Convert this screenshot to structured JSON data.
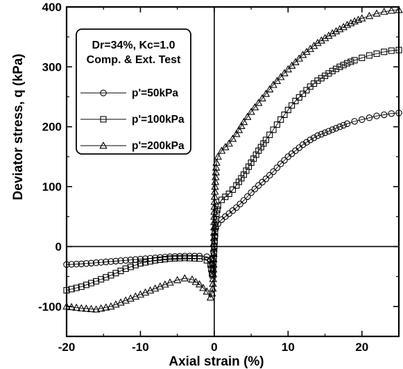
{
  "chart_data": {
    "type": "scatter",
    "xlabel": "Axial strain (%)",
    "ylabel": "Deviator stress, q (kPa)",
    "xlim": [
      -20,
      25
    ],
    "ylim": [
      -150,
      400
    ],
    "x_ticks": [
      -20,
      -10,
      0,
      10,
      20
    ],
    "y_ticks": [
      -100,
      0,
      100,
      200,
      300,
      400
    ],
    "grid": false,
    "zero_lines": true,
    "legend_position": "top-left",
    "annotation_lines": [
      "Dr=34%, Kc=1.0",
      "Comp. & Ext. Test"
    ],
    "series": [
      {
        "name": "p'=50kPa",
        "marker": "circle",
        "points": [
          [
            -20,
            -30
          ],
          [
            -18,
            -29
          ],
          [
            -16,
            -27
          ],
          [
            -14,
            -25
          ],
          [
            -12,
            -23
          ],
          [
            -10,
            -21
          ],
          [
            -8,
            -19
          ],
          [
            -6,
            -17
          ],
          [
            -4,
            -16
          ],
          [
            -2,
            -16
          ],
          [
            -1,
            -17
          ],
          [
            -0.5,
            -22
          ],
          [
            -0.3,
            -30
          ],
          [
            -0.2,
            -36
          ],
          [
            -0.1,
            -20
          ],
          [
            0,
            0
          ],
          [
            0.1,
            18
          ],
          [
            0.2,
            30
          ],
          [
            0.5,
            38
          ],
          [
            1,
            45
          ],
          [
            2,
            55
          ],
          [
            3,
            65
          ],
          [
            4,
            77
          ],
          [
            5,
            90
          ],
          [
            6,
            102
          ],
          [
            7,
            113
          ],
          [
            8,
            125
          ],
          [
            9,
            138
          ],
          [
            10,
            150
          ],
          [
            11,
            160
          ],
          [
            12,
            170
          ],
          [
            13,
            178
          ],
          [
            14,
            185
          ],
          [
            15,
            190
          ],
          [
            16,
            195
          ],
          [
            17,
            200
          ],
          [
            18,
            205
          ],
          [
            19,
            209
          ],
          [
            20,
            212
          ],
          [
            21,
            215
          ],
          [
            22,
            218
          ],
          [
            23,
            220
          ],
          [
            24,
            222
          ],
          [
            25,
            223
          ]
        ]
      },
      {
        "name": "p'=100kPa",
        "marker": "square",
        "points": [
          [
            -20,
            -73
          ],
          [
            -18,
            -67
          ],
          [
            -16,
            -58
          ],
          [
            -14,
            -48
          ],
          [
            -12,
            -37
          ],
          [
            -10,
            -28
          ],
          [
            -8,
            -23
          ],
          [
            -6,
            -20
          ],
          [
            -4,
            -19
          ],
          [
            -2,
            -20
          ],
          [
            -1,
            -23
          ],
          [
            -0.5,
            -30
          ],
          [
            -0.3,
            -45
          ],
          [
            -0.2,
            -48
          ],
          [
            -0.1,
            -20
          ],
          [
            0,
            0
          ],
          [
            0.1,
            25
          ],
          [
            0.3,
            55
          ],
          [
            0.5,
            68
          ],
          [
            1,
            78
          ],
          [
            2,
            88
          ],
          [
            3,
            102
          ],
          [
            4,
            120
          ],
          [
            5,
            140
          ],
          [
            6,
            160
          ],
          [
            7,
            178
          ],
          [
            8,
            195
          ],
          [
            9,
            212
          ],
          [
            10,
            228
          ],
          [
            11,
            243
          ],
          [
            12,
            255
          ],
          [
            13,
            267
          ],
          [
            14,
            277
          ],
          [
            15,
            285
          ],
          [
            16,
            293
          ],
          [
            17,
            300
          ],
          [
            18,
            306
          ],
          [
            19,
            311
          ],
          [
            20,
            315
          ],
          [
            21,
            319
          ],
          [
            22,
            322
          ],
          [
            23,
            325
          ],
          [
            24,
            327
          ],
          [
            25,
            328
          ]
        ]
      },
      {
        "name": "p'=200kPa",
        "marker": "triangle",
        "points": [
          [
            -20,
            -100
          ],
          [
            -18,
            -103
          ],
          [
            -16,
            -105
          ],
          [
            -14,
            -100
          ],
          [
            -12,
            -90
          ],
          [
            -10,
            -80
          ],
          [
            -8,
            -70
          ],
          [
            -6,
            -60
          ],
          [
            -5,
            -56
          ],
          [
            -4,
            -53
          ],
          [
            -3,
            -55
          ],
          [
            -2,
            -63
          ],
          [
            -1,
            -75
          ],
          [
            -0.5,
            -85
          ],
          [
            -0.3,
            -78
          ],
          [
            -0.2,
            -70
          ],
          [
            -0.1,
            -30
          ],
          [
            0,
            50
          ],
          [
            0.1,
            100
          ],
          [
            0.3,
            140
          ],
          [
            0.5,
            150
          ],
          [
            1,
            160
          ],
          [
            2,
            172
          ],
          [
            3,
            188
          ],
          [
            4,
            208
          ],
          [
            5,
            225
          ],
          [
            6,
            240
          ],
          [
            7,
            255
          ],
          [
            8,
            270
          ],
          [
            9,
            283
          ],
          [
            10,
            296
          ],
          [
            11,
            308
          ],
          [
            12,
            320
          ],
          [
            13,
            330
          ],
          [
            14,
            340
          ],
          [
            15,
            348
          ],
          [
            16,
            356
          ],
          [
            17,
            363
          ],
          [
            18,
            370
          ],
          [
            19,
            376
          ],
          [
            20,
            381
          ],
          [
            21,
            385
          ],
          [
            22,
            389
          ],
          [
            23,
            392
          ],
          [
            24,
            394
          ],
          [
            25,
            395
          ]
        ]
      }
    ]
  }
}
